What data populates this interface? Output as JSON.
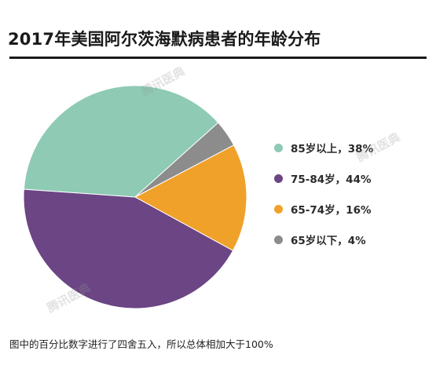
{
  "chart_data": {
    "type": "pie",
    "title": "2017年美国阿尔茨海默病患者的年龄分布",
    "slices": [
      {
        "label": "85岁以上，38%",
        "category": "85岁以上",
        "value": 38,
        "color": "#8ecab4"
      },
      {
        "label": "75-84岁，44%",
        "category": "75-84岁",
        "value": 44,
        "color": "#6b4584"
      },
      {
        "label": "65-74岁，16%",
        "category": "65-74岁",
        "value": 16,
        "color": "#f0a12a"
      },
      {
        "label": "65岁以下，4%",
        "category": "65岁以下",
        "value": 4,
        "color": "#8c8c8c"
      }
    ],
    "legend_position": "right"
  },
  "footnote": "图中的百分比数字进行了四舍五入，所以总体相加大于100%",
  "watermark": "腾讯医典"
}
